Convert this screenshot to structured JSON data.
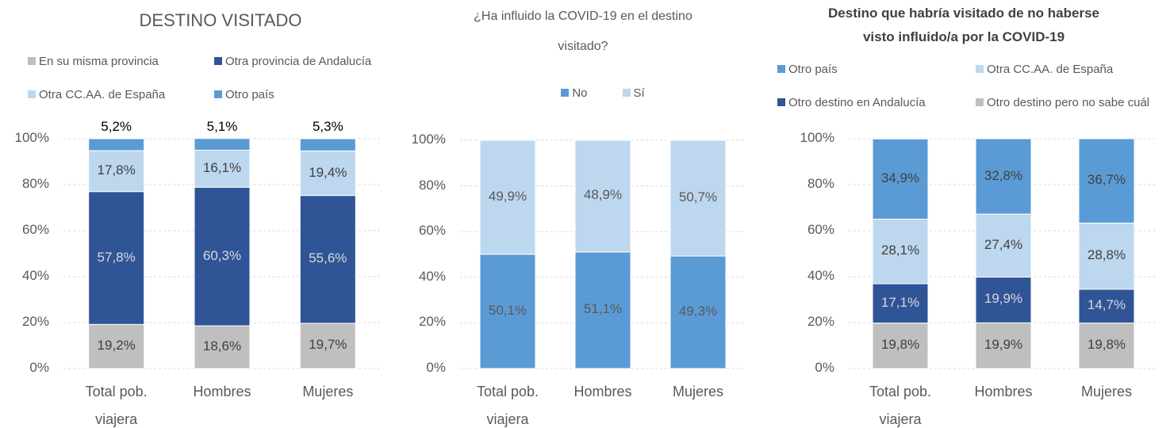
{
  "chart_data": [
    {
      "type": "bar",
      "stacked": true,
      "title": "DESTINO VISITADO",
      "categories": [
        "Total pob. viajera",
        "Hombres",
        "Mujeres"
      ],
      "ylim": [
        0,
        100
      ],
      "yticks": [
        {
          "value": 0,
          "label": "0%"
        },
        {
          "value": 20,
          "label": "20%"
        },
        {
          "value": 40,
          "label": "40%"
        },
        {
          "value": 60,
          "label": "60%"
        },
        {
          "value": 80,
          "label": "80%"
        },
        {
          "value": 100,
          "label": "100%"
        }
      ],
      "grid": true,
      "legend_reversed": false,
      "series": [
        {
          "name": "En su misma provincia",
          "color": "#bfbfbf",
          "label_color": "#404040",
          "values": [
            19.2,
            18.6,
            19.7
          ],
          "value_labels": [
            "19,2%",
            "18,6%",
            "19,7%"
          ]
        },
        {
          "name": "Otra provincia de Andalucía",
          "color": "#2f5597",
          "label_color": "#d9d9d9",
          "values": [
            57.8,
            60.3,
            55.6
          ],
          "value_labels": [
            "57,8%",
            "60,3%",
            "55,6%"
          ]
        },
        {
          "name": "Otra CC.AA. de España",
          "color": "#bdd7ee",
          "label_color": "#404040",
          "values": [
            17.8,
            16.1,
            19.4
          ],
          "value_labels": [
            "17,8%",
            "16,1%",
            "19,4%"
          ]
        },
        {
          "name": "Otro país",
          "color": "#5b9bd5",
          "label_color": "#000000",
          "values": [
            5.2,
            5.1,
            5.3
          ],
          "value_labels": [
            "5,2%",
            "5,1%",
            "5,3%"
          ]
        }
      ]
    },
    {
      "type": "bar",
      "stacked": true,
      "title": "¿Ha influido la COVID-19 en el destino visitado?",
      "categories": [
        "Total pob. viajera",
        "Hombres",
        "Mujeres"
      ],
      "ylim": [
        0,
        100
      ],
      "yticks": [
        {
          "value": 0,
          "label": "0%"
        },
        {
          "value": 20,
          "label": "20%"
        },
        {
          "value": 40,
          "label": "40%"
        },
        {
          "value": 60,
          "label": "60%"
        },
        {
          "value": 80,
          "label": "80%"
        },
        {
          "value": 100,
          "label": "100%"
        }
      ],
      "grid": true,
      "legend_reversed": false,
      "series": [
        {
          "name": "No",
          "color": "#5b9bd5",
          "label_color": "#595959",
          "values": [
            50.1,
            51.1,
            49.3
          ],
          "value_labels": [
            "50,1%",
            "51,1%",
            "49,3%"
          ]
        },
        {
          "name": "Sí",
          "color": "#bdd7ee",
          "label_color": "#595959",
          "values": [
            49.9,
            48.9,
            50.7
          ],
          "value_labels": [
            "49,9%",
            "48,9%",
            "50,7%"
          ]
        }
      ]
    },
    {
      "type": "bar",
      "stacked": true,
      "title": "Destino que habría visitado de no haberse visto influido/a por la COVID-19",
      "categories": [
        "Total pob. viajera",
        "Hombres",
        "Mujeres"
      ],
      "ylim": [
        0,
        100
      ],
      "yticks": [
        {
          "value": 0,
          "label": "0%"
        },
        {
          "value": 20,
          "label": "20%"
        },
        {
          "value": 40,
          "label": "40%"
        },
        {
          "value": 60,
          "label": "60%"
        },
        {
          "value": 80,
          "label": "80%"
        },
        {
          "value": 100,
          "label": "100%"
        }
      ],
      "grid": true,
      "legend_reversed": true,
      "series": [
        {
          "name": "Otro destino pero no sabe cuál",
          "color": "#bfbfbf",
          "label_color": "#404040",
          "values": [
            19.8,
            19.9,
            19.8
          ],
          "value_labels": [
            "19,8%",
            "19,9%",
            "19,8%"
          ]
        },
        {
          "name": "Otro destino en Andalucía",
          "color": "#2f5597",
          "label_color": "#d9d9d9",
          "values": [
            17.1,
            19.9,
            14.7
          ],
          "value_labels": [
            "17,1%",
            "19,9%",
            "14,7%"
          ]
        },
        {
          "name": "Otra CC.AA. de España",
          "color": "#bdd7ee",
          "label_color": "#404040",
          "values": [
            28.1,
            27.4,
            28.8
          ],
          "value_labels": [
            "28,1%",
            "27,4%",
            "28,8%"
          ]
        },
        {
          "name": "Otro país",
          "color": "#5b9bd5",
          "label_color": "#404040",
          "values": [
            34.9,
            32.8,
            36.7
          ],
          "value_labels": [
            "34,9%",
            "32,8%",
            "36,7%"
          ]
        }
      ]
    }
  ]
}
